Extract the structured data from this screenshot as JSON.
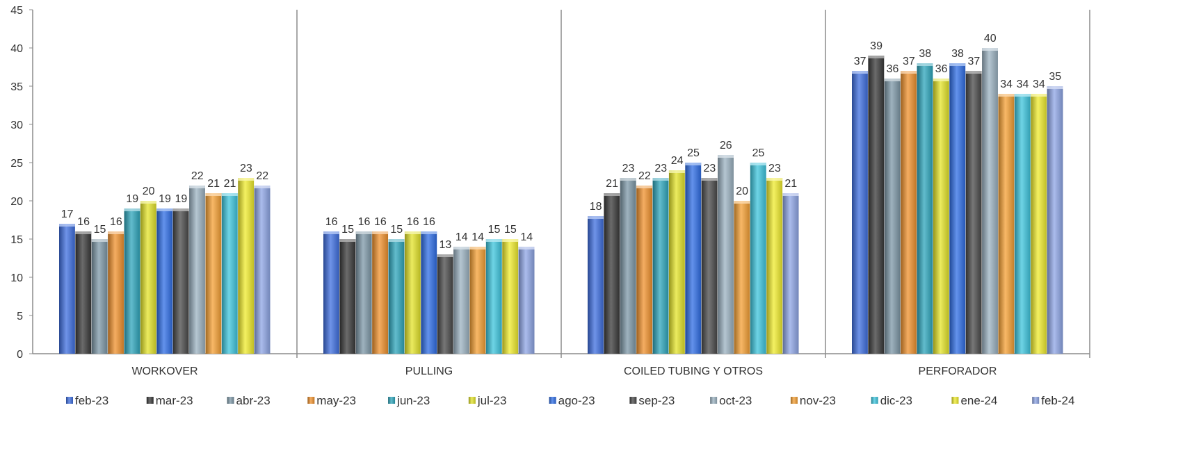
{
  "chart_data": {
    "type": "bar",
    "categories": [
      "WORKOVER",
      "PULLING",
      "COILED TUBING Y OTROS",
      "PERFORADOR"
    ],
    "series": [
      {
        "name": "feb-23",
        "color": "#3F6FE0",
        "values": [
          17,
          16,
          18,
          37
        ]
      },
      {
        "name": "mar-23",
        "color": "#3A3A3A",
        "values": [
          16,
          15,
          21,
          39
        ]
      },
      {
        "name": "abr-23",
        "color": "#7E98A8",
        "values": [
          15,
          16,
          23,
          36
        ]
      },
      {
        "name": "may-23",
        "color": "#F0922E",
        "values": [
          16,
          16,
          22,
          37
        ]
      },
      {
        "name": "jun-23",
        "color": "#2EA6BC",
        "values": [
          19,
          15,
          23,
          38
        ]
      },
      {
        "name": "jul-23",
        "color": "#E4E42A",
        "values": [
          20,
          16,
          24,
          36
        ]
      },
      {
        "name": "ago-23",
        "color": "#2F6EE6",
        "values": [
          19,
          16,
          25,
          38
        ]
      },
      {
        "name": "sep-23",
        "color": "#4A4A4A",
        "values": [
          19,
          13,
          23,
          37
        ]
      },
      {
        "name": "oct-23",
        "color": "#9CB3C2",
        "values": [
          22,
          14,
          26,
          40
        ]
      },
      {
        "name": "nov-23",
        "color": "#F5A034",
        "values": [
          21,
          14,
          20,
          34
        ]
      },
      {
        "name": "dic-23",
        "color": "#3EC6DE",
        "values": [
          21,
          15,
          25,
          34
        ]
      },
      {
        "name": "ene-24",
        "color": "#F0EC2E",
        "values": [
          23,
          15,
          23,
          34
        ]
      },
      {
        "name": "feb-24",
        "color": "#8FA6E6",
        "values": [
          22,
          14,
          21,
          35
        ]
      }
    ],
    "ylim": [
      0,
      45
    ],
    "yticks": [
      0,
      5,
      10,
      15,
      20,
      25,
      30,
      35,
      40,
      45
    ],
    "grid": false,
    "legend": "bottom",
    "data_labels": true
  }
}
